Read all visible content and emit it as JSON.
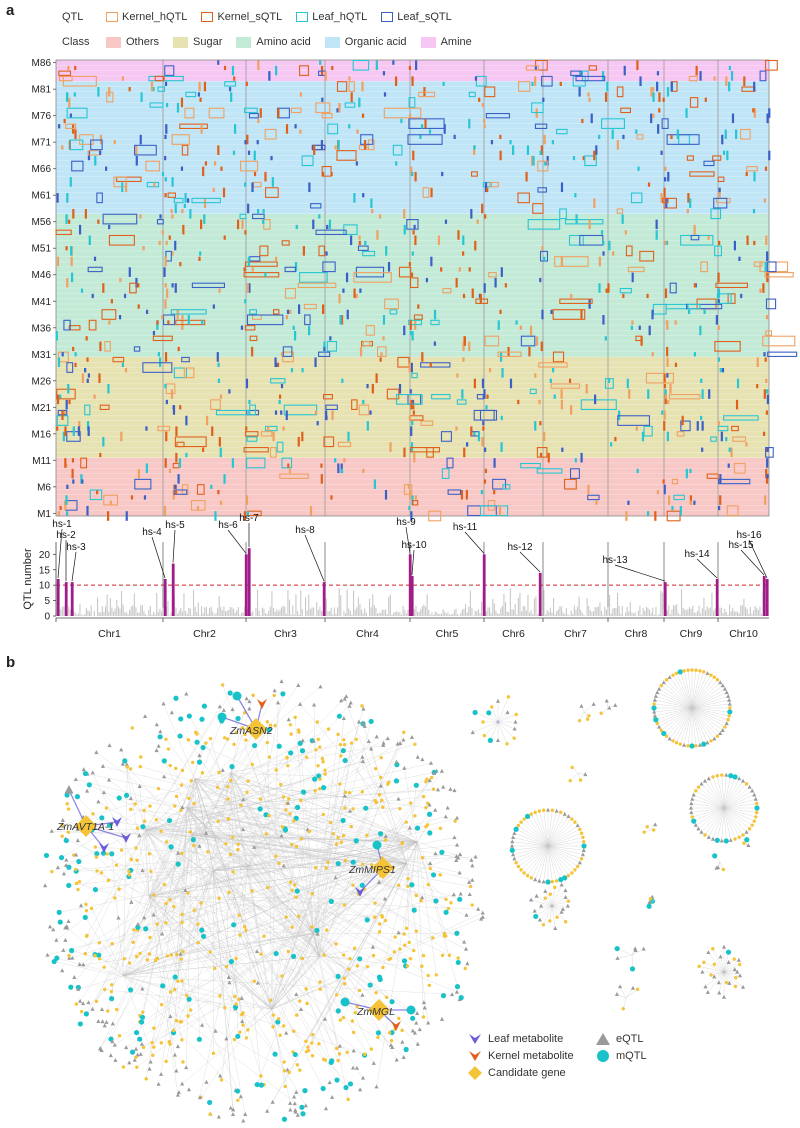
{
  "panel_a": {
    "letter": "a",
    "legend": {
      "qtl_header": "QTL",
      "qtl_items": [
        {
          "label": "Kernel_hQTL",
          "color": "#f0a060"
        },
        {
          "label": "Kernel_sQTL",
          "color": "#e0601a"
        },
        {
          "label": "Leaf_hQTL",
          "color": "#27c6d3"
        },
        {
          "label": "Leaf_sQTL",
          "color": "#3a60c8"
        }
      ],
      "class_header": "Class",
      "class_items": [
        {
          "label": "Others",
          "color": "#f8c8c6"
        },
        {
          "label": "Sugar",
          "color": "#e6e2b2"
        },
        {
          "label": "Amino acid",
          "color": "#c2ead6"
        },
        {
          "label": "Organic acid",
          "color": "#bfe5f7"
        },
        {
          "label": "Amine",
          "color": "#f6c7f2"
        }
      ]
    }
  },
  "chart_data": [
    {
      "type": "heatmap",
      "title": "",
      "y_tick_labels": [
        "M86",
        "M81",
        "M76",
        "M71",
        "M66",
        "M61",
        "M56",
        "M51",
        "M46",
        "M41",
        "M36",
        "M31",
        "M26",
        "M21",
        "M16",
        "M11",
        "M6",
        "M1"
      ],
      "metabolite_count": 86,
      "class_ranges": [
        {
          "class": "Others",
          "from": "M1",
          "to": "M11"
        },
        {
          "class": "Sugar",
          "from": "M12",
          "to": "M30"
        },
        {
          "class": "Amino acid",
          "from": "M31",
          "to": "M57"
        },
        {
          "class": "Organic acid",
          "from": "M58",
          "to": "M82"
        },
        {
          "class": "Amine",
          "from": "M83",
          "to": "M86"
        }
      ]
    },
    {
      "type": "bar",
      "ylabel": "QTL number",
      "ylim": [
        0,
        24
      ],
      "yticks": [
        0,
        5,
        10,
        15,
        20
      ],
      "threshold": 10,
      "chromosomes": [
        "Chr1",
        "Chr2",
        "Chr3",
        "Chr4",
        "Chr5",
        "Chr6",
        "Chr7",
        "Chr8",
        "Chr9",
        "Chr10"
      ],
      "hotspots": [
        {
          "label": "hs-1",
          "chr": "Chr1",
          "value": 12
        },
        {
          "label": "hs-2",
          "chr": "Chr1",
          "value": 11
        },
        {
          "label": "hs-3",
          "chr": "Chr1",
          "value": 11
        },
        {
          "label": "hs-4",
          "chr": "Chr2",
          "value": 12
        },
        {
          "label": "hs-5",
          "chr": "Chr2",
          "value": 17
        },
        {
          "label": "hs-6",
          "chr": "Chr3",
          "value": 20
        },
        {
          "label": "hs-7",
          "chr": "Chr3",
          "value": 22
        },
        {
          "label": "hs-8",
          "chr": "Chr3",
          "value": 11
        },
        {
          "label": "hs-9",
          "chr": "Chr5",
          "value": 20
        },
        {
          "label": "hs-10",
          "chr": "Chr5",
          "value": 13
        },
        {
          "label": "hs-11",
          "chr": "Chr5",
          "value": 20
        },
        {
          "label": "hs-12",
          "chr": "Chr6",
          "value": 14
        },
        {
          "label": "hs-13",
          "chr": "Chr8",
          "value": 11
        },
        {
          "label": "hs-14",
          "chr": "Chr9",
          "value": 12
        },
        {
          "label": "hs-15",
          "chr": "Chr10",
          "value": 13
        },
        {
          "label": "hs-16",
          "chr": "Chr10",
          "value": 12
        }
      ]
    }
  ],
  "panel_b": {
    "letter": "b",
    "genes": [
      "ZmASN2",
      "ZmAVT1A-1",
      "ZmMIPS1",
      "ZmMGL"
    ],
    "legend": [
      {
        "label": "Leaf metabolite",
        "symbol": "leaf-metabolite",
        "color": "#6a5fd8"
      },
      {
        "label": "eQTL",
        "symbol": "eqtl",
        "color": "#9a9a9a"
      },
      {
        "label": "Kernel metabolite",
        "symbol": "kernel-metabolite",
        "color": "#e0601a"
      },
      {
        "label": "mQTL",
        "symbol": "mqtl",
        "color": "#17c3c8"
      },
      {
        "label": "Candidate gene",
        "symbol": "candidate-gene",
        "color": "#f5c338"
      }
    ]
  }
}
